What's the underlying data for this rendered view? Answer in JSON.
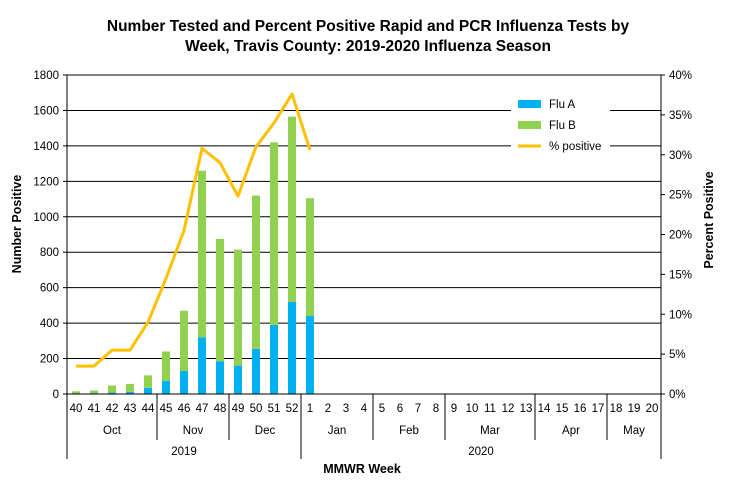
{
  "chart_data": {
    "type": "bar",
    "stacked": true,
    "title_line1": "Number Tested and Percent Positive Rapid and PCR Influenza Tests by",
    "title_line2": "Week, Travis County:  2019-2020 Influenza Season",
    "xlabel": "MMWR Week",
    "ylabel": "Number Positive",
    "y2label": "Percent Positive",
    "ylim": [
      0,
      1800
    ],
    "yticks": [
      0,
      200,
      400,
      600,
      800,
      1000,
      1200,
      1400,
      1600,
      1800
    ],
    "y2lim": [
      0,
      40
    ],
    "y2ticks": [
      "0%",
      "5%",
      "10%",
      "15%",
      "20%",
      "25%",
      "30%",
      "35%",
      "40%"
    ],
    "categories": [
      "40",
      "41",
      "42",
      "43",
      "44",
      "45",
      "46",
      "47",
      "48",
      "49",
      "50",
      "51",
      "52",
      "1",
      "2",
      "3",
      "4",
      "5",
      "6",
      "7",
      "8",
      "9",
      "10",
      "11",
      "12",
      "13",
      "14",
      "15",
      "16",
      "17",
      "18",
      "19",
      "20"
    ],
    "months": [
      {
        "label": "Oct",
        "start": 0,
        "end": 5
      },
      {
        "label": "Nov",
        "start": 5,
        "end": 9
      },
      {
        "label": "Dec",
        "start": 9,
        "end": 13
      },
      {
        "label": "Jan",
        "start": 13,
        "end": 17
      },
      {
        "label": "Feb",
        "start": 17,
        "end": 21
      },
      {
        "label": "Mar",
        "start": 21,
        "end": 26
      },
      {
        "label": "Apr",
        "start": 26,
        "end": 30
      },
      {
        "label": "May",
        "start": 30,
        "end": 33
      }
    ],
    "years": [
      {
        "label": "2019",
        "start": 0,
        "end": 13
      },
      {
        "label": "2020",
        "start": 13,
        "end": 33
      }
    ],
    "series": [
      {
        "name": "Flu A",
        "color": "#00B0F0",
        "axis": "left",
        "values": [
          3,
          5,
          8,
          12,
          35,
          75,
          130,
          320,
          185,
          160,
          255,
          390,
          520,
          440,
          null,
          null,
          null,
          null,
          null,
          null,
          null,
          null,
          null,
          null,
          null,
          null,
          null,
          null,
          null,
          null,
          null,
          null,
          null
        ]
      },
      {
        "name": "Flu B",
        "color": "#92D050",
        "axis": "left",
        "values": [
          12,
          15,
          40,
          45,
          70,
          165,
          340,
          940,
          690,
          655,
          865,
          1030,
          1045,
          665,
          null,
          null,
          null,
          null,
          null,
          null,
          null,
          null,
          null,
          null,
          null,
          null,
          null,
          null,
          null,
          null,
          null,
          null,
          null
        ]
      },
      {
        "name": "% positive",
        "color": "#FFC000",
        "axis": "right",
        "type": "line",
        "values": [
          3.5,
          3.5,
          5.5,
          5.5,
          9,
          14.5,
          20.5,
          30.8,
          29,
          24.8,
          31,
          34,
          37.6,
          30.6,
          null,
          null,
          null,
          null,
          null,
          null,
          null,
          null,
          null,
          null,
          null,
          null,
          null,
          null,
          null,
          null,
          null,
          null,
          null
        ]
      }
    ],
    "legend_position": "top-right",
    "grid": true
  }
}
